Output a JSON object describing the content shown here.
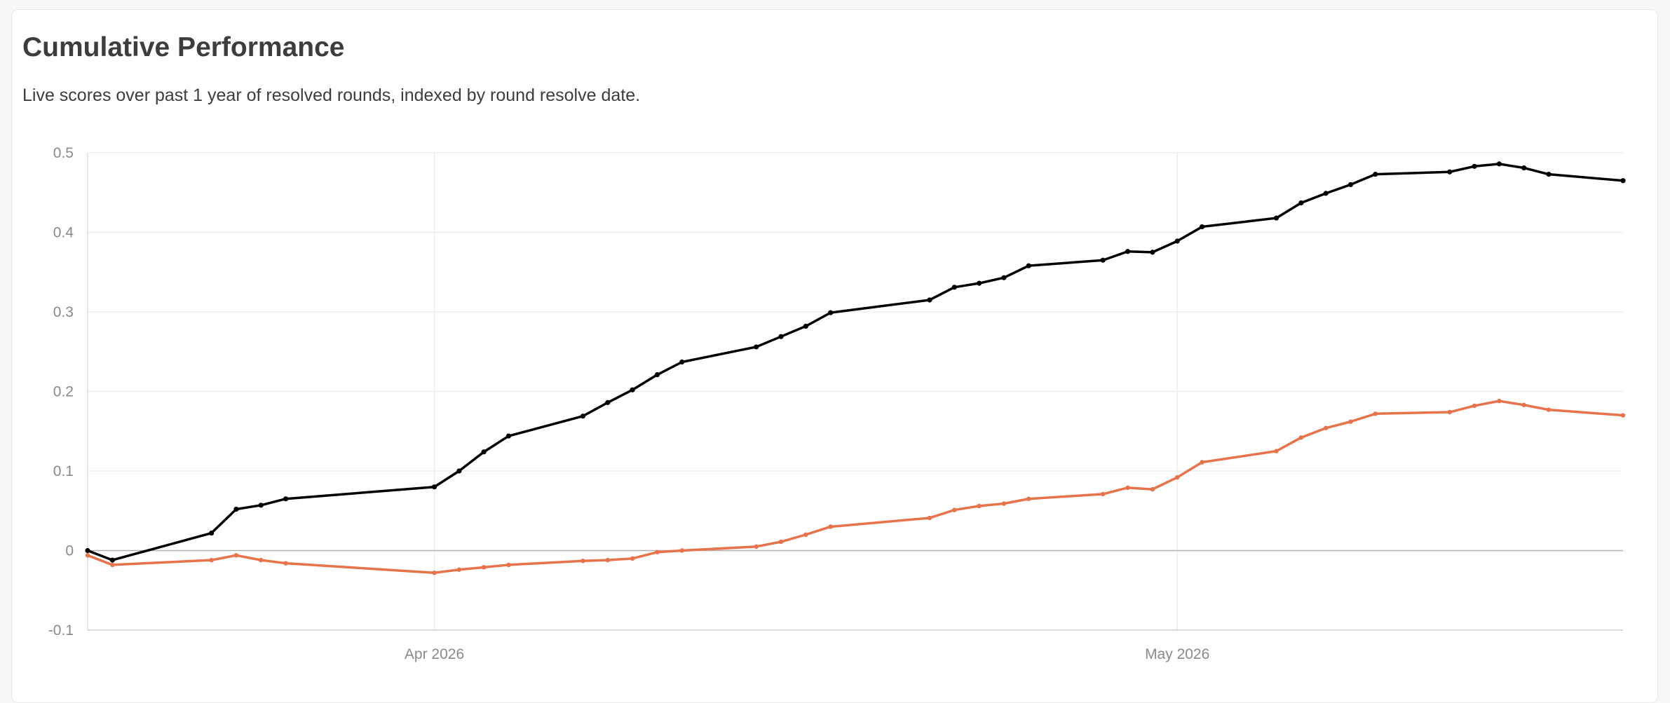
{
  "title": "Cumulative Performance",
  "subtitle": "Live scores over past 1 year of resolved rounds, indexed by round resolve date.",
  "colors": {
    "series_1": "#000000",
    "series_2": "#e8734a",
    "grid": "#ececec",
    "zero_line": "#b0b0b0",
    "tick_text": "#8a8a8a"
  },
  "chart_data": {
    "type": "line",
    "title": "Cumulative Performance",
    "subtitle": "Live scores over past 1 year of resolved rounds, indexed by round resolve date.",
    "xlabel": "",
    "ylabel": "",
    "x_axis": "date",
    "xlim": [
      "2026-03-18",
      "2026-05-19"
    ],
    "ylim": [
      -0.1,
      0.5
    ],
    "y_ticks": [
      {
        "value": -0.1,
        "label": "-0.1"
      },
      {
        "value": 0,
        "label": "0"
      },
      {
        "value": 0.1,
        "label": "0.1"
      },
      {
        "value": 0.2,
        "label": "0.2"
      },
      {
        "value": 0.3,
        "label": "0.3"
      },
      {
        "value": 0.4,
        "label": "0.4"
      },
      {
        "value": 0.5,
        "label": "0.5"
      }
    ],
    "x_ticks": [
      {
        "value": "2026-04-01",
        "label": "Apr 2026"
      },
      {
        "value": "2026-05-01",
        "label": "May 2026"
      }
    ],
    "grid": true,
    "legend": "none",
    "x": [
      "2026-03-18",
      "2026-03-19",
      "2026-03-23",
      "2026-03-24",
      "2026-03-25",
      "2026-03-26",
      "2026-04-01",
      "2026-04-02",
      "2026-04-03",
      "2026-04-04",
      "2026-04-07",
      "2026-04-08",
      "2026-04-09",
      "2026-04-10",
      "2026-04-11",
      "2026-04-14",
      "2026-04-15",
      "2026-04-16",
      "2026-04-17",
      "2026-04-21",
      "2026-04-22",
      "2026-04-23",
      "2026-04-24",
      "2026-04-25",
      "2026-04-28",
      "2026-04-29",
      "2026-04-30",
      "2026-05-01",
      "2026-05-02",
      "2026-05-05",
      "2026-05-06",
      "2026-05-07",
      "2026-05-08",
      "2026-05-09",
      "2026-05-12",
      "2026-05-13",
      "2026-05-14",
      "2026-05-15",
      "2026-05-16",
      "2026-05-19"
    ],
    "series": [
      {
        "values": [
          0.0,
          -0.012,
          0.022,
          0.052,
          0.057,
          0.065,
          0.08,
          0.1,
          0.124,
          0.144,
          0.169,
          0.186,
          0.202,
          0.221,
          0.237,
          0.256,
          0.269,
          0.282,
          0.299,
          0.315,
          0.331,
          0.336,
          0.343,
          0.358,
          0.365,
          0.376,
          0.375,
          0.389,
          0.407,
          0.418,
          0.437,
          0.449,
          0.46,
          0.473,
          0.476,
          0.483,
          0.486,
          0.481,
          0.473,
          0.465
        ]
      },
      {
        "values": [
          -0.006,
          -0.018,
          -0.012,
          -0.006,
          -0.012,
          -0.016,
          -0.028,
          -0.024,
          -0.021,
          -0.018,
          -0.013,
          -0.012,
          -0.01,
          -0.002,
          0.0,
          0.005,
          0.011,
          0.02,
          0.03,
          0.041,
          0.051,
          0.056,
          0.059,
          0.065,
          0.071,
          0.079,
          0.077,
          0.092,
          0.111,
          0.125,
          0.142,
          0.154,
          0.162,
          0.172,
          0.174,
          0.182,
          0.188,
          0.183,
          0.177,
          0.17
        ]
      }
    ]
  }
}
